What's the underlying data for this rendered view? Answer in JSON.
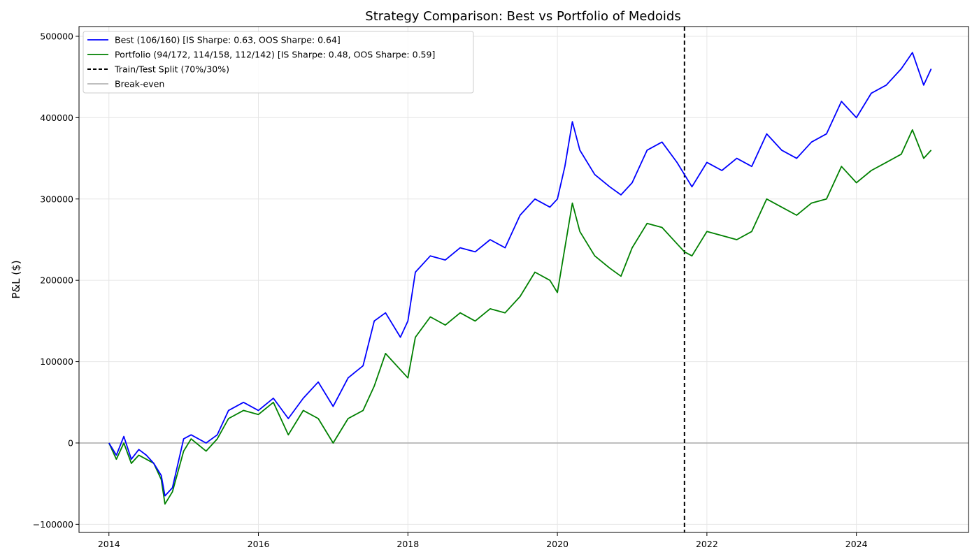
{
  "chart_data": {
    "type": "line",
    "title": "Strategy Comparison: Best vs Portfolio of Medoids",
    "xlabel": "",
    "ylabel": "P&L ($)",
    "xlim": [
      2013.6,
      2025.5
    ],
    "ylim": [
      -110000,
      512000
    ],
    "x_ticks": [
      2014,
      2016,
      2018,
      2020,
      2022,
      2024
    ],
    "y_ticks": [
      -100000,
      0,
      100000,
      200000,
      300000,
      400000,
      500000
    ],
    "x_tick_labels": [
      "2014",
      "2016",
      "2018",
      "2020",
      "2022",
      "2024"
    ],
    "y_tick_labels": [
      "−100000",
      "0",
      "100000",
      "200000",
      "300000",
      "400000",
      "500000"
    ],
    "grid": true,
    "legend_position": "top-left",
    "series": [
      {
        "name": "Best (106/160) [IS Sharpe: 0.63, OOS Sharpe: 0.64]",
        "color": "#0000ff",
        "x": [
          2014.0,
          2014.1,
          2014.2,
          2014.3,
          2014.4,
          2014.5,
          2014.6,
          2014.7,
          2014.75,
          2014.85,
          2015.0,
          2015.1,
          2015.3,
          2015.45,
          2015.6,
          2015.8,
          2016.0,
          2016.2,
          2016.4,
          2016.6,
          2016.8,
          2017.0,
          2017.2,
          2017.4,
          2017.55,
          2017.7,
          2017.9,
          2018.0,
          2018.1,
          2018.3,
          2018.5,
          2018.7,
          2018.9,
          2019.1,
          2019.3,
          2019.5,
          2019.7,
          2019.9,
          2020.0,
          2020.1,
          2020.2,
          2020.3,
          2020.5,
          2020.7,
          2020.85,
          2021.0,
          2021.2,
          2021.4,
          2021.6,
          2021.7,
          2021.8,
          2022.0,
          2022.2,
          2022.4,
          2022.6,
          2022.8,
          2023.0,
          2023.2,
          2023.4,
          2023.6,
          2023.8,
          2024.0,
          2024.2,
          2024.4,
          2024.6,
          2024.75,
          2024.9,
          2025.0
        ],
        "y": [
          0,
          -15000,
          8000,
          -20000,
          -8000,
          -15000,
          -25000,
          -40000,
          -65000,
          -55000,
          5000,
          10000,
          0,
          10000,
          40000,
          50000,
          40000,
          55000,
          30000,
          55000,
          75000,
          45000,
          80000,
          95000,
          150000,
          160000,
          130000,
          150000,
          210000,
          230000,
          225000,
          240000,
          235000,
          250000,
          240000,
          280000,
          300000,
          290000,
          300000,
          340000,
          395000,
          360000,
          330000,
          315000,
          305000,
          320000,
          360000,
          370000,
          345000,
          330000,
          315000,
          345000,
          335000,
          350000,
          340000,
          380000,
          360000,
          350000,
          370000,
          380000,
          420000,
          400000,
          430000,
          440000,
          460000,
          480000,
          440000,
          460000
        ]
      },
      {
        "name": "Portfolio (94/172, 114/158, 112/142) [IS Sharpe: 0.48, OOS Sharpe: 0.59]",
        "color": "#008000",
        "x": [
          2014.0,
          2014.1,
          2014.2,
          2014.3,
          2014.4,
          2014.5,
          2014.6,
          2014.7,
          2014.75,
          2014.85,
          2015.0,
          2015.1,
          2015.3,
          2015.45,
          2015.6,
          2015.8,
          2016.0,
          2016.2,
          2016.4,
          2016.6,
          2016.8,
          2017.0,
          2017.2,
          2017.4,
          2017.55,
          2017.7,
          2017.9,
          2018.0,
          2018.1,
          2018.3,
          2018.5,
          2018.7,
          2018.9,
          2019.1,
          2019.3,
          2019.5,
          2019.7,
          2019.9,
          2020.0,
          2020.1,
          2020.2,
          2020.3,
          2020.5,
          2020.7,
          2020.85,
          2021.0,
          2021.2,
          2021.4,
          2021.6,
          2021.7,
          2021.8,
          2022.0,
          2022.2,
          2022.4,
          2022.6,
          2022.8,
          2023.0,
          2023.2,
          2023.4,
          2023.6,
          2023.8,
          2024.0,
          2024.2,
          2024.4,
          2024.6,
          2024.75,
          2024.9,
          2025.0
        ],
        "y": [
          0,
          -20000,
          0,
          -25000,
          -15000,
          -20000,
          -25000,
          -45000,
          -75000,
          -60000,
          -10000,
          5000,
          -10000,
          5000,
          30000,
          40000,
          35000,
          50000,
          10000,
          40000,
          30000,
          0,
          30000,
          40000,
          70000,
          110000,
          90000,
          80000,
          130000,
          155000,
          145000,
          160000,
          150000,
          165000,
          160000,
          180000,
          210000,
          200000,
          185000,
          240000,
          295000,
          260000,
          230000,
          215000,
          205000,
          240000,
          270000,
          265000,
          245000,
          235000,
          230000,
          260000,
          255000,
          250000,
          260000,
          300000,
          290000,
          280000,
          295000,
          300000,
          340000,
          320000,
          335000,
          345000,
          355000,
          385000,
          350000,
          360000
        ]
      },
      {
        "name": "Train/Test Split (70%/30%)",
        "color": "#000000",
        "x_value": 2021.7
      },
      {
        "name": "Break-even",
        "color": "#aaaaaa",
        "y_value": 0
      }
    ]
  }
}
